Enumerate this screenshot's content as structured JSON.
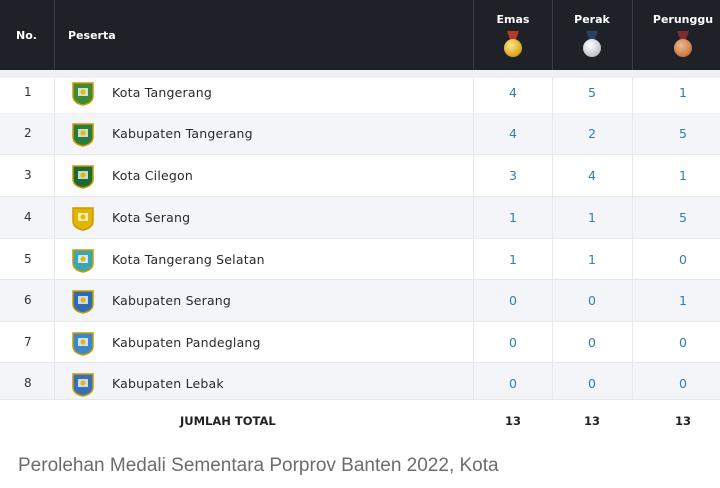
{
  "header": {
    "no": "No.",
    "peserta": "Peserta",
    "emas": "Emas",
    "perak": "Perak",
    "perunggu": "Perunggu"
  },
  "rows": [
    {
      "no": "1",
      "name": "Kota Tangerang",
      "emas": "4",
      "perak": "5",
      "perunggu": "1",
      "logo_color": "#3c8a3a"
    },
    {
      "no": "2",
      "name": "Kabupaten Tangerang",
      "emas": "4",
      "perak": "2",
      "perunggu": "5",
      "logo_color": "#2d7b3c"
    },
    {
      "no": "3",
      "name": "Kota Cilegon",
      "emas": "3",
      "perak": "4",
      "perunggu": "1",
      "logo_color": "#1e6a35"
    },
    {
      "no": "4",
      "name": "Kota Serang",
      "emas": "1",
      "perak": "1",
      "perunggu": "5",
      "logo_color": "#e3b400"
    },
    {
      "no": "5",
      "name": "Kota Tangerang Selatan",
      "emas": "1",
      "perak": "1",
      "perunggu": "0",
      "logo_color": "#3aa6b0"
    },
    {
      "no": "6",
      "name": "Kabupaten Serang",
      "emas": "0",
      "perak": "0",
      "perunggu": "1",
      "logo_color": "#2f6ab3"
    },
    {
      "no": "7",
      "name": "Kabupaten Pandeglang",
      "emas": "0",
      "perak": "0",
      "perunggu": "0",
      "logo_color": "#3d86c9"
    },
    {
      "no": "8",
      "name": "Kabupaten Lebak",
      "emas": "0",
      "perak": "0",
      "perunggu": "0",
      "logo_color": "#3a6fb8"
    }
  ],
  "total": {
    "label": "JUMLAH TOTAL",
    "emas": "13",
    "perak": "13",
    "perunggu": "13"
  },
  "caption": "Perolehan Medali Sementara Porprov Banten 2022, Kota",
  "colors": {
    "header_bg": "#1f2128",
    "value_blue": "#2f7fb8"
  }
}
